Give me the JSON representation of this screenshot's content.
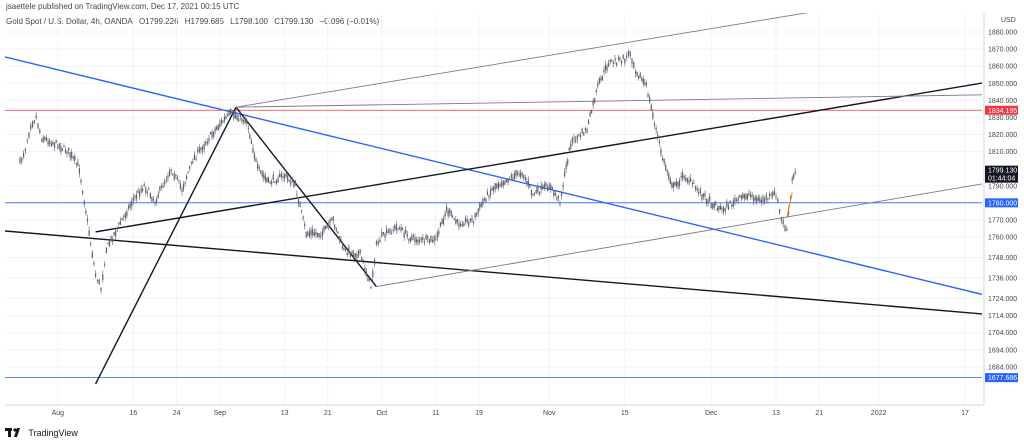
{
  "header": {
    "published": "jsaettele published on TradingView.com, Dec 17, 2021 00:15 UTC",
    "symbol": "Gold Spot / U.S. Dollar, 4h, OANDA",
    "open": "O1799.226",
    "high": "H1799.685",
    "low": "L1798.100",
    "close": "C1799.130",
    "change": "−0.096 (−0.01%)"
  },
  "footer": {
    "brand": "TradingView"
  },
  "chart_data": {
    "type": "candlestick",
    "title": "Gold Spot / U.S. Dollar, 4h, OANDA",
    "currency_label": "USD",
    "x_tick_labels": [
      "2",
      "20",
      "Aug",
      "16",
      "24",
      "Sep",
      "13",
      "21",
      "Oct",
      "11",
      "19",
      "Nov",
      "15",
      "Dec",
      "13",
      "21",
      "2022",
      "17"
    ],
    "y_tick_labels": [
      "1880.000",
      "1870.000",
      "1860.000",
      "1850.000",
      "1840.000",
      "1830.000",
      "1820.000",
      "1810.000",
      "1790.000",
      "1770.000",
      "1760.000",
      "1748.000",
      "1736.000",
      "1724.000",
      "1714.000",
      "1704.000",
      "1694.000",
      "1684.000"
    ],
    "y_range": [
      1670,
      1884
    ],
    "price_tags": [
      {
        "label": "1834.195",
        "color": "#f23645",
        "line": true
      },
      {
        "label": "1799.130",
        "sub": "01:44:04",
        "color": "#131722",
        "line": false
      },
      {
        "label": "1780.000",
        "color": "#2962ff",
        "line": true
      },
      {
        "label": "1677.686",
        "color": "#2962ff",
        "line": true
      }
    ],
    "series": [
      {
        "anchors": [
          [
            "Jul 26",
            1803
          ],
          [
            "Jul 27",
            1812
          ],
          [
            "Jul 28",
            1826
          ],
          [
            "Jul 29",
            1830
          ],
          [
            "Jul 30",
            1818
          ],
          [
            "Aug 2",
            1814
          ],
          [
            "Aug 4",
            1810
          ],
          [
            "Aug 6",
            1800
          ],
          [
            "Aug 9",
            1738
          ],
          [
            "Aug 10",
            1730
          ],
          [
            "Aug 11",
            1753
          ],
          [
            "Aug 13",
            1765
          ],
          [
            "Aug 16",
            1782
          ],
          [
            "Aug 18",
            1790
          ],
          [
            "Aug 20",
            1781
          ],
          [
            "Aug 23",
            1800
          ],
          [
            "Aug 25",
            1788
          ],
          [
            "Aug 27",
            1805
          ],
          [
            "Aug 30",
            1818
          ],
          [
            "Sep 1",
            1826
          ],
          [
            "Sep 3",
            1832
          ],
          [
            "Sep 6",
            1828
          ],
          [
            "Sep 8",
            1800
          ],
          [
            "Sep 10",
            1792
          ],
          [
            "Sep 13",
            1796
          ],
          [
            "Sep 15",
            1790
          ],
          [
            "Sep 17",
            1762
          ],
          [
            "Sep 20",
            1762
          ],
          [
            "Sep 22",
            1770
          ],
          [
            "Sep 24",
            1752
          ],
          [
            "Sep 27",
            1750
          ],
          [
            "Sep 29",
            1731
          ],
          [
            "Sep 30",
            1755
          ],
          [
            "Oct 1",
            1760
          ],
          [
            "Oct 4",
            1766
          ],
          [
            "Oct 6",
            1760
          ],
          [
            "Oct 8",
            1758
          ],
          [
            "Oct 11",
            1758
          ],
          [
            "Oct 13",
            1776
          ],
          [
            "Oct 15",
            1768
          ],
          [
            "Oct 18",
            1770
          ],
          [
            "Oct 20",
            1782
          ],
          [
            "Oct 22",
            1790
          ],
          [
            "Oct 25",
            1795
          ],
          [
            "Oct 27",
            1798
          ],
          [
            "Oct 29",
            1785
          ],
          [
            "Nov 1",
            1790
          ],
          [
            "Nov 3",
            1781
          ],
          [
            "Nov 5",
            1815
          ],
          [
            "Nov 8",
            1823
          ],
          [
            "Nov 10",
            1848
          ],
          [
            "Nov 12",
            1862
          ],
          [
            "Nov 15",
            1864
          ],
          [
            "Nov 16",
            1868
          ],
          [
            "Nov 17",
            1858
          ],
          [
            "Nov 19",
            1848
          ],
          [
            "Nov 22",
            1806
          ],
          [
            "Nov 24",
            1789
          ],
          [
            "Nov 26",
            1796
          ],
          [
            "Nov 29",
            1786
          ],
          [
            "Dec 1",
            1780
          ],
          [
            "Dec 3",
            1776
          ],
          [
            "Dec 6",
            1782
          ],
          [
            "Dec 8",
            1785
          ],
          [
            "Dec 10",
            1781
          ],
          [
            "Dec 13",
            1785
          ],
          [
            "Dec 14",
            1770
          ],
          [
            "Dec 15",
            1764
          ],
          [
            "Dec 16",
            1793
          ],
          [
            "Dec 16 20:00",
            1799
          ]
        ],
        "highlight": [
          [
            "Dec 15",
            1771
          ],
          [
            "Dec 16",
            1786
          ]
        ],
        "highlight_color": "#f57c00"
      }
    ],
    "drawings": [
      {
        "color": "#2962ff",
        "points": [
          [
            "Jun 29",
            1884
          ],
          [
            "Feb 4",
            1715
          ]
        ]
      },
      {
        "color": "#131722",
        "points": [
          [
            "Jun 29",
            1770
          ],
          [
            "Feb 4",
            1711
          ]
        ]
      },
      {
        "color": "#131722",
        "points": [
          [
            "Aug 9",
            1763
          ],
          [
            "Feb 4",
            1858
          ]
        ]
      },
      {
        "color": "#131722",
        "points": [
          [
            "Aug 9",
            1674
          ],
          [
            "Sep 4",
            1836
          ]
        ]
      },
      {
        "color": "#131722",
        "points": [
          [
            "Sep 4",
            1836
          ],
          [
            "Sep 30",
            1731
          ]
        ]
      },
      {
        "color": "#787b86",
        "points": [
          [
            "Sep 4",
            1836
          ],
          [
            "Dec 24",
            1894
          ]
        ]
      },
      {
        "color": "#787b86",
        "points": [
          [
            "Sep 4",
            1836
          ],
          [
            "Feb 4",
            1844
          ]
        ]
      },
      {
        "color": "#787b86",
        "points": [
          [
            "Sep 30",
            1731
          ],
          [
            "Feb 4",
            1799
          ]
        ]
      }
    ]
  }
}
